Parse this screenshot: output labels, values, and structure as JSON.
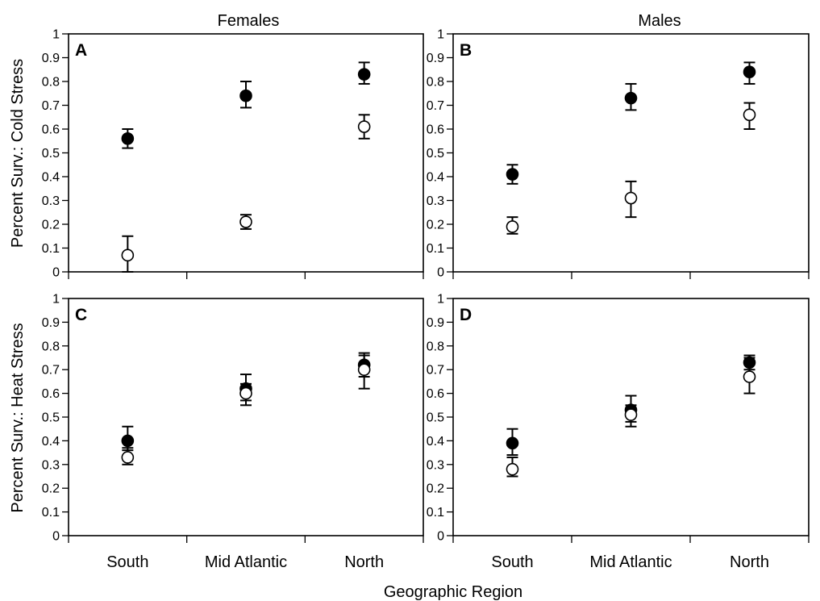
{
  "chart_data": {
    "type": "scatter",
    "xlabel": "Geographic Region",
    "column_titles": [
      "Females",
      "Males"
    ],
    "row_ylabels": [
      "Percent Surv.: Cold Stress",
      "Percent Surv.: Heat Stress"
    ],
    "categories": [
      "South",
      "Mid Atlantic",
      "North"
    ],
    "ylim": [
      0,
      1
    ],
    "yticks": [
      "0",
      "0.1",
      "0.2",
      "0.3",
      "0.4",
      "0.5",
      "0.6",
      "0.7",
      "0.8",
      "0.9",
      "1"
    ],
    "markers": {
      "filled": "#000000",
      "open": "#ffffff"
    },
    "panels": [
      {
        "letter": "A",
        "series": [
          {
            "marker": "filled",
            "values": [
              0.56,
              0.74,
              0.83
            ],
            "err_upper": [
              0.6,
              0.8,
              0.88
            ],
            "err_lower": [
              0.52,
              0.69,
              0.79
            ]
          },
          {
            "marker": "open",
            "values": [
              0.07,
              0.21,
              0.61
            ],
            "err_upper": [
              0.15,
              0.24,
              0.66
            ],
            "err_lower": [
              0.0,
              0.18,
              0.56
            ]
          }
        ]
      },
      {
        "letter": "B",
        "series": [
          {
            "marker": "filled",
            "values": [
              0.41,
              0.73,
              0.84
            ],
            "err_upper": [
              0.45,
              0.79,
              0.88
            ],
            "err_lower": [
              0.37,
              0.68,
              0.79
            ]
          },
          {
            "marker": "open",
            "values": [
              0.19,
              0.31,
              0.66
            ],
            "err_upper": [
              0.23,
              0.38,
              0.71
            ],
            "err_lower": [
              0.16,
              0.23,
              0.6
            ]
          }
        ]
      },
      {
        "letter": "C",
        "series": [
          {
            "marker": "filled",
            "values": [
              0.4,
              0.62,
              0.72
            ],
            "err_upper": [
              0.46,
              0.68,
              0.77
            ],
            "err_lower": [
              0.36,
              0.57,
              0.67
            ]
          },
          {
            "marker": "open",
            "values": [
              0.33,
              0.6,
              0.7
            ],
            "err_upper": [
              0.37,
              0.64,
              0.76
            ],
            "err_lower": [
              0.3,
              0.55,
              0.62
            ]
          }
        ]
      },
      {
        "letter": "D",
        "series": [
          {
            "marker": "filled",
            "values": [
              0.39,
              0.53,
              0.73
            ],
            "err_upper": [
              0.45,
              0.59,
              0.76
            ],
            "err_lower": [
              0.34,
              0.48,
              0.7
            ]
          },
          {
            "marker": "open",
            "values": [
              0.28,
              0.51,
              0.67
            ],
            "err_upper": [
              0.33,
              0.55,
              0.75
            ],
            "err_lower": [
              0.25,
              0.46,
              0.6
            ]
          }
        ]
      }
    ]
  }
}
